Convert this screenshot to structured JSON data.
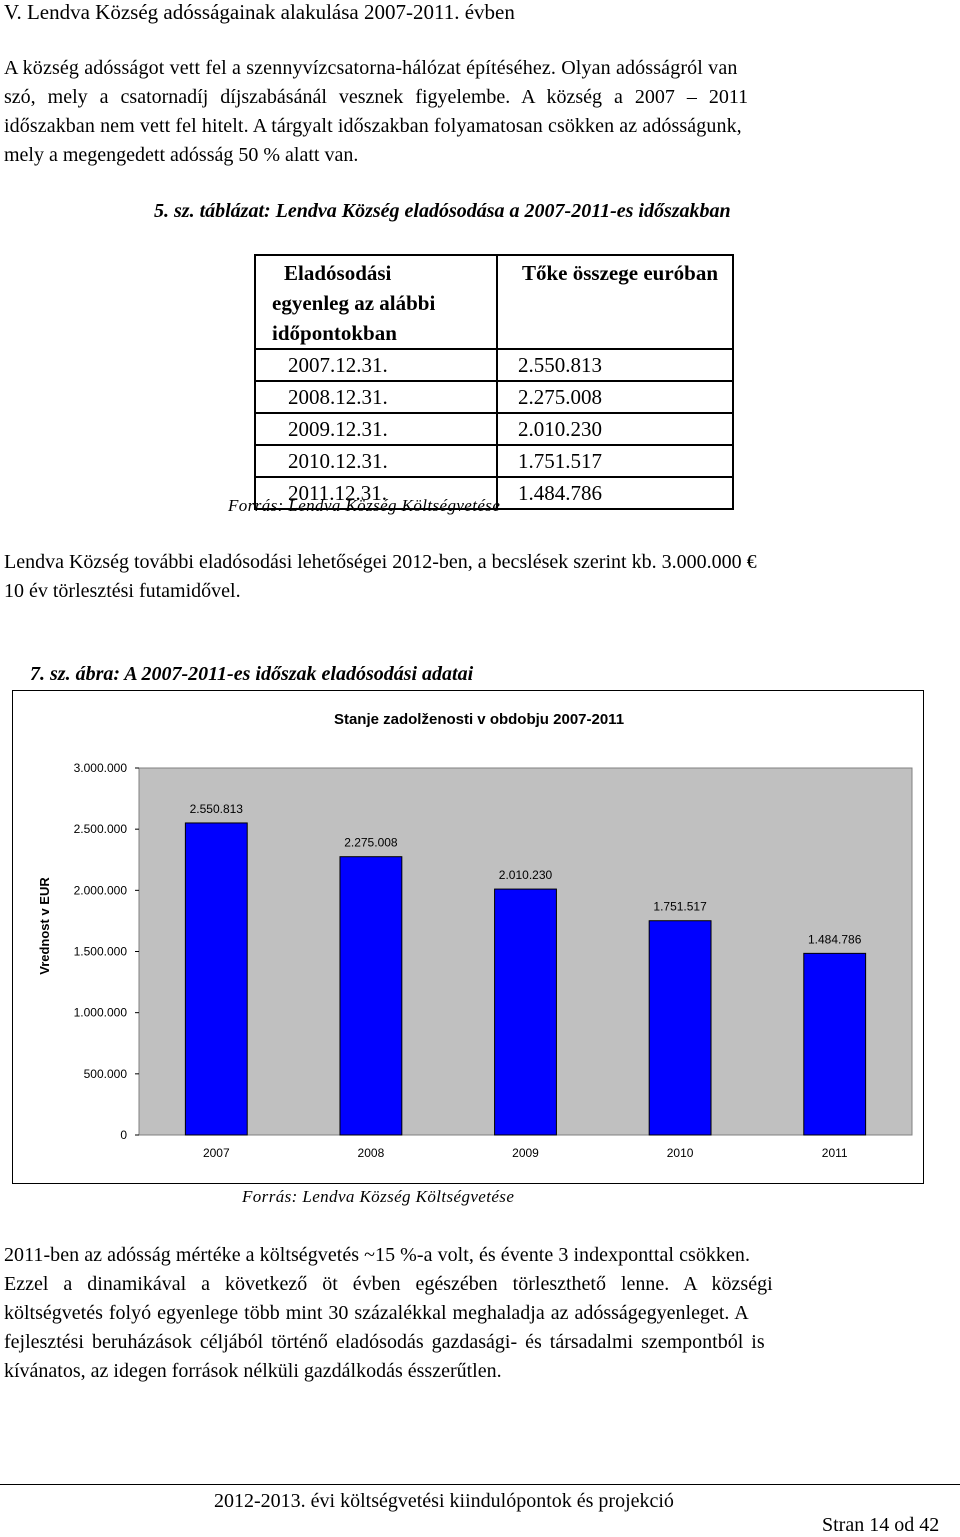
{
  "section": {
    "heading": "V. Lendva Község adósságainak alakulása 2007-2011. évben"
  },
  "intro": {
    "lines": [
      "A község adósságot vett fel a szennyvízcsatorna-hálózat építéséhez. Olyan adósságról van",
      "szó, mely a csatornadíj díjszabásánál vesznek figyelembe. A község a 2007 – 2011",
      "időszakban nem vett fel hitelt. A tárgyalt időszakban folyamatosan csökken az adósságunk,",
      "mely a megengedett adósság 50 % alatt van."
    ]
  },
  "table": {
    "caption": "5. sz. táblázat: Lendva Község eladósodása a 2007-2011-es időszakban",
    "header_col1_lines": [
      "Eladósodási",
      "egyenleg az alábbi",
      "időpontokban"
    ],
    "header_col2": "Tőke összege euróban",
    "rows": [
      {
        "date": "2007.12.31.",
        "amount": "2.550.813"
      },
      {
        "date": "2008.12.31.",
        "amount": "2.275.008"
      },
      {
        "date": "2009.12.31.",
        "amount": "2.010.230"
      },
      {
        "date": "2010.12.31.",
        "amount": "1.751.517"
      },
      {
        "date": "2011.12.31.",
        "amount": "1.484.786"
      }
    ],
    "source": "Forrás: Lendva Község Költségvetése"
  },
  "mid_para": {
    "lines": [
      "Lendva Község további eladósodási lehetőségei 2012-ben, a becslések szerint kb. 3.000.000 €",
      "10 év törlesztési futamidővel."
    ]
  },
  "figure": {
    "caption": "7. sz. ábra: A 2007-2011-es időszak eladósodási adatai",
    "source": "Forrás: Lendva Község Költségvetése"
  },
  "chart_data": {
    "type": "bar",
    "title": "Stanje zadolženosti v obdobju 2007-2011",
    "xlabel": "",
    "ylabel": "Vrednost v EUR",
    "categories": [
      "2007",
      "2008",
      "2009",
      "2010",
      "2011"
    ],
    "values": [
      2550813,
      2275008,
      2010230,
      1751517,
      1484786
    ],
    "value_labels": [
      "2.550.813",
      "2.275.008",
      "2.010.230",
      "1.751.517",
      "1.484.786"
    ],
    "ylim": [
      0,
      3000000
    ],
    "yticks": [
      0,
      500000,
      1000000,
      1500000,
      2000000,
      2500000,
      3000000
    ],
    "ytick_labels": [
      "0",
      "500.000",
      "1.000.000",
      "1.500.000",
      "2.000.000",
      "2.500.000",
      "3.000.000"
    ],
    "grid": false,
    "legend": "none",
    "colors": {
      "bar": "#0000ff",
      "plot_area": "#c0c0c0"
    }
  },
  "closing": {
    "lines": [
      "2011-ben az adósság mértéke a költségvetés ~15 %-a volt, és évente 3 indexponttal csökken.",
      "Ezzel a dinamikával a következő öt évben egészében törleszthető lenne. A községi",
      "költségvetés folyó egyenlege  több mint 30 százalékkal meghaladja az adósságegyenleget. A",
      "fejlesztési beruházások céljából történő eladósodás gazdasági- és társadalmi szempontból is",
      "kívánatos, az idegen források nélküli gazdálkodás ésszerűtlen."
    ]
  },
  "footer": {
    "title": "2012-2013. évi költségvetési kiindulópontok és projekció",
    "page": "Stran 14 od 42"
  }
}
